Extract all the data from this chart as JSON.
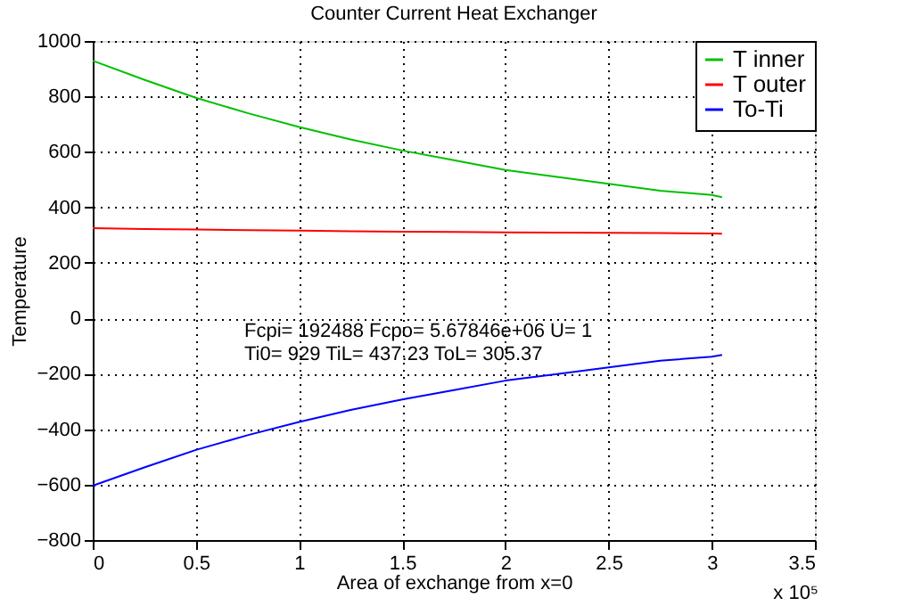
{
  "chart_data": {
    "type": "line",
    "title": "Counter Current Heat Exchanger",
    "xlabel": "Area of exchange from x=0",
    "ylabel": "Temperature",
    "x": [
      0,
      0.25,
      0.5,
      0.75,
      1,
      1.25,
      1.5,
      1.75,
      2,
      2.25,
      2.5,
      2.75,
      3,
      3.05
    ],
    "series": [
      {
        "name": "T inner",
        "color": "#00c000",
        "values": [
          929,
          860,
          795,
          740,
          690,
          645,
          605,
          570,
          535,
          510,
          485,
          460,
          445,
          437
        ]
      },
      {
        "name": "T outer",
        "color": "#ff0000",
        "values": [
          325,
          322,
          320,
          318,
          316,
          314,
          312,
          311,
          310,
          309,
          308,
          307,
          306,
          305
        ]
      },
      {
        "name": "To-Ti",
        "color": "#0000ff",
        "values": [
          -604,
          -538,
          -475,
          -422,
          -374,
          -331,
          -293,
          -259,
          -225,
          -201,
          -177,
          -153,
          -139,
          -132
        ]
      }
    ],
    "xlim": [
      0,
      3.5
    ],
    "xticks": [
      0,
      0.5,
      1,
      1.5,
      2,
      2.5,
      3,
      3.5
    ],
    "ylim": [
      -800,
      1000
    ],
    "yticks": [
      -800,
      -600,
      -400,
      -200,
      0,
      200,
      400,
      600,
      800,
      1000
    ],
    "annotations": [
      "Fcpi= 192488 Fcpo= 5.67846e+06 U= 1",
      "Ti0= 929 TiL= 437.23 ToL= 305.37",
      "x 10⁵"
    ],
    "grid": true,
    "legend": "top right",
    "line_style": "solid",
    "marker": "none"
  }
}
